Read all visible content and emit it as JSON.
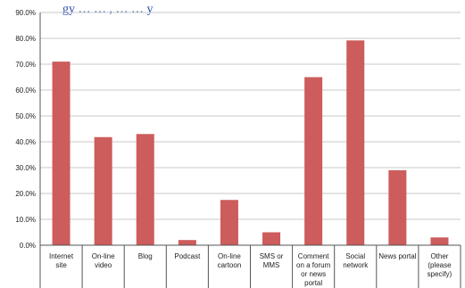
{
  "chart_data": {
    "type": "bar",
    "title_fragment": "gy … … , … … y",
    "xlabel": "",
    "ylabel": "",
    "ylim": [
      0,
      90
    ],
    "yticks": [
      "0.0%",
      "10.0%",
      "20.0%",
      "30.0%",
      "40.0%",
      "50.0%",
      "60.0%",
      "70.0%",
      "80.0%",
      "90.0%"
    ],
    "categories": [
      [
        "Internet",
        "site"
      ],
      [
        "On-line",
        "video"
      ],
      [
        "Blog"
      ],
      [
        "Podcast"
      ],
      [
        "On-line",
        "cartoon"
      ],
      [
        "SMS or",
        "MMS"
      ],
      [
        "Comment",
        "on a forum",
        "or news",
        "portal"
      ],
      [
        "Social",
        "network"
      ],
      [
        "News portal"
      ],
      [
        "Other",
        "(please",
        "specify)"
      ]
    ],
    "values": [
      71,
      41.8,
      43,
      2,
      17.5,
      5,
      65,
      79.2,
      29,
      3
    ],
    "grid": true,
    "legend": "none",
    "colors": {
      "bar": "#cd5c5c",
      "grid": "#c8c8c8",
      "axis": "#555555",
      "title": "#2a4bb0"
    }
  }
}
